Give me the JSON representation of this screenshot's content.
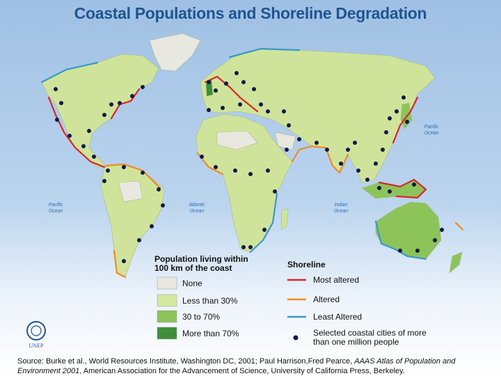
{
  "title": "Coastal Populations and Shoreline Degradation",
  "oceans": [
    "Pacific Ocean",
    "Atlantic Ocean",
    "Indian Ocean",
    "Pacific Ocean"
  ],
  "population_legend": {
    "title": [
      "Population living within",
      "100 km of the coast"
    ],
    "items": [
      "None",
      "Less than 30%",
      "30 to 70%",
      "More than 70%"
    ]
  },
  "shoreline_legend": {
    "title": "Shoreline",
    "items": [
      "Most altered",
      "Altered",
      "Least Altered"
    ],
    "cities": [
      "Selected coastal cities of more",
      "than one million people"
    ]
  },
  "logo": "UNEP",
  "source": [
    "Source: Burke et al., World Resources Institute, Washington DC, 2001; Paul Harrison,Fred Pearce, ",
    "AAAS Atlas of Population and Environment 2001",
    ",  American Association for the Advancement of Science, University of California Press, Berkeley."
  ]
}
